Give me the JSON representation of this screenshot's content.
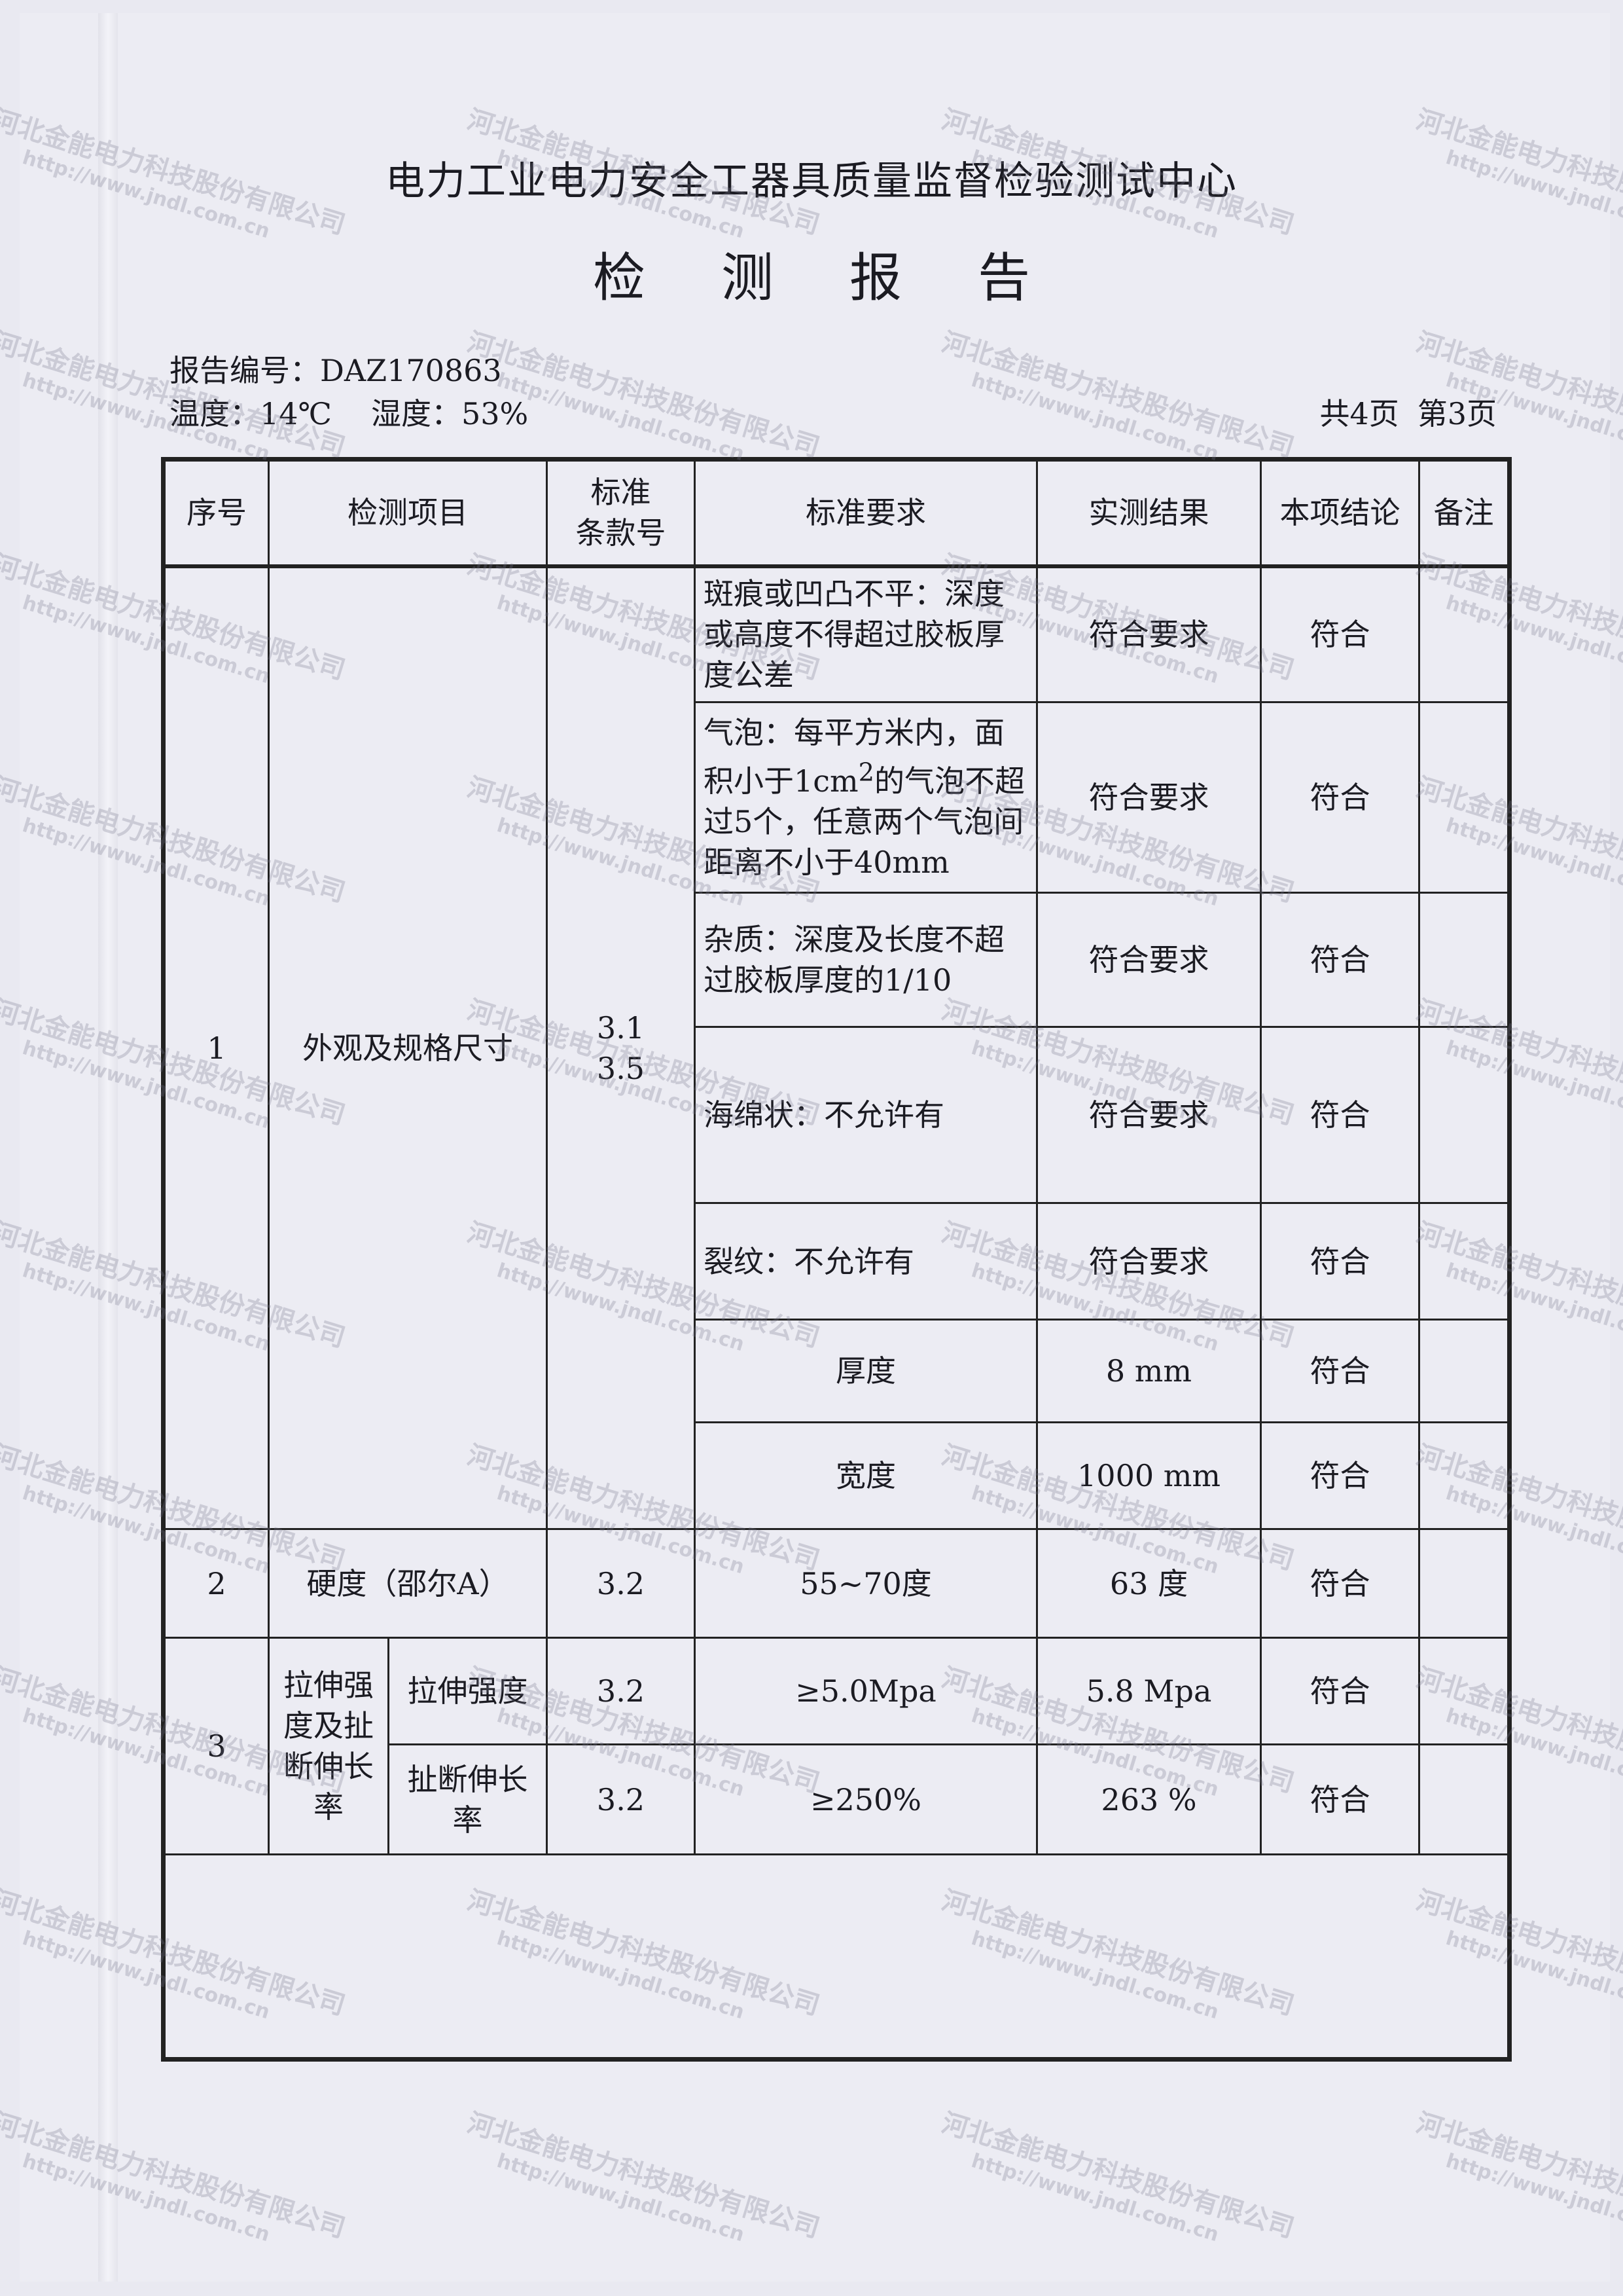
{
  "header": {
    "org_title": "电力工业电力安全工器具质量监督检验测试中心",
    "report_title_chars": [
      "检",
      "测",
      "报",
      "告"
    ],
    "report_no_label": "报告编号：",
    "report_no": "DAZ170863",
    "temperature": "温度：14℃",
    "humidity": "湿度：53%",
    "page_total": "共4页",
    "page_current": "第3页"
  },
  "table": {
    "columns": [
      "序号",
      "检测项目",
      "标准\n条款号",
      "标准要求",
      "实测结果",
      "本项结论",
      "备注"
    ],
    "group1": {
      "no": "1",
      "item": "外观及规格尺寸",
      "clause": "3.1\n3.5",
      "rows": [
        {
          "req": "斑痕或凹凸不平：深度或高度不得超过胶板厚度公差",
          "result": "符合要求",
          "verdict": "符合",
          "note": ""
        },
        {
          "req": "气泡：每平方米内，面积小于1cm²的气泡不超过5个，任意两个气泡间距离不小于40mm",
          "result": "符合要求",
          "verdict": "符合",
          "note": ""
        },
        {
          "req": "杂质：深度及长度不超过胶板厚度的1/10",
          "result": "符合要求",
          "verdict": "符合",
          "note": ""
        },
        {
          "req": "海绵状：不允许有",
          "result": "符合要求",
          "verdict": "符合",
          "note": ""
        },
        {
          "req": "裂纹：不允许有",
          "result": "符合要求",
          "verdict": "符合",
          "note": ""
        },
        {
          "req": "厚度",
          "result": "8 mm",
          "verdict": "符合",
          "note": ""
        },
        {
          "req": "宽度",
          "result": "1000 mm",
          "verdict": "符合",
          "note": ""
        }
      ]
    },
    "group2": {
      "no": "2",
      "item": "硬度（邵尔A）",
      "clause": "3.2",
      "req": "55~70度",
      "result": "63 度",
      "verdict": "符合",
      "note": ""
    },
    "group3": {
      "no": "3",
      "item": "拉伸强度及扯断伸长率",
      "rows": [
        {
          "sub": "拉伸强度",
          "clause": "3.2",
          "req": "≥5.0Mpa",
          "result": "5.8 Mpa",
          "verdict": "符合",
          "note": ""
        },
        {
          "sub": "扯断伸长率",
          "clause": "3.2",
          "req": "≥250%",
          "result": "263 %",
          "verdict": "符合",
          "note": ""
        }
      ]
    }
  },
  "watermark": {
    "company": "河北金能电力科技股份有限公司",
    "url": "http://www.jndl.com.cn"
  }
}
